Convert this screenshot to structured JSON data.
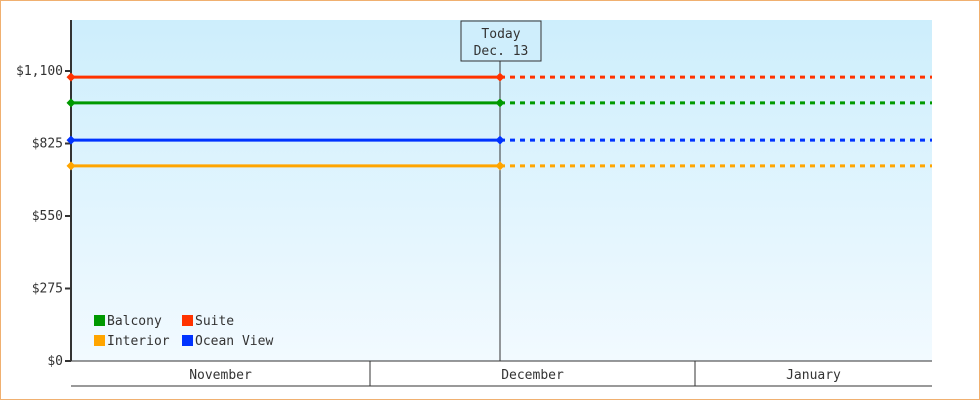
{
  "chart_data": {
    "type": "line",
    "ylim": [
      0,
      1200
    ],
    "yticks": [
      0,
      275,
      550,
      825,
      1100
    ],
    "ytick_labels": [
      "$0",
      "$275",
      "$550",
      "$825",
      "$1,100"
    ],
    "x_months": [
      "November",
      "December",
      "January"
    ],
    "today_marker": {
      "line1": "Today",
      "line2": "Dec. 13"
    },
    "series": [
      {
        "name": "Suite",
        "color": "#ff3300",
        "value": 1077
      },
      {
        "name": "Balcony",
        "color": "#009900",
        "value": 979
      },
      {
        "name": "Ocean View",
        "color": "#0033ff",
        "value": 838
      },
      {
        "name": "Interior",
        "color": "#ffa500",
        "value": 740
      }
    ],
    "legend_position": "bottom-left",
    "legend_order": [
      "Balcony",
      "Suite",
      "Interior",
      "Ocean View"
    ],
    "line_style": "solid before today, dotted after today",
    "background_gradient": [
      "#cdeefc",
      "#f2faff"
    ]
  }
}
